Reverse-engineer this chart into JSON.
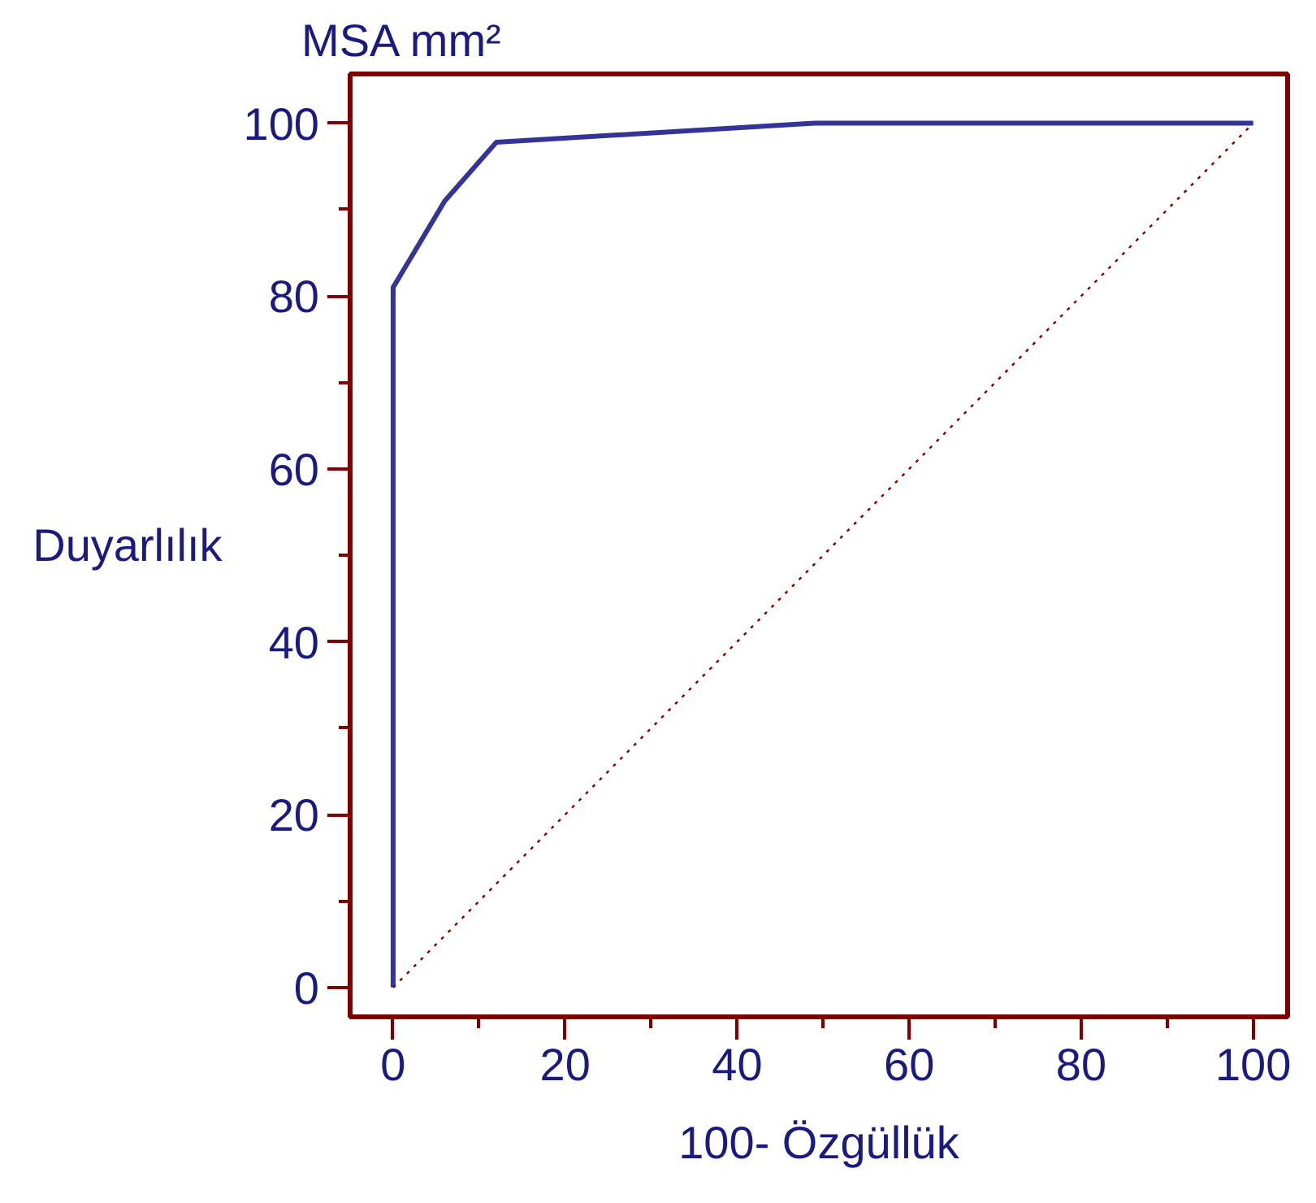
{
  "chart_data": {
    "type": "line",
    "title": "MSA  mm²",
    "xlabel": "100- Özgüllük",
    "ylabel": "Duyarlılık",
    "xlim": [
      -5,
      104
    ],
    "ylim": [
      -3.4,
      105.7
    ],
    "xticks": [
      0,
      20,
      40,
      60,
      80,
      100
    ],
    "yticks": [
      0,
      20,
      40,
      60,
      80,
      100
    ],
    "grid": false,
    "series": [
      {
        "color": "#333399",
        "x": [
          0,
          0,
          6,
          12,
          49,
          100
        ],
        "values": [
          0,
          81,
          91,
          97.8,
          100,
          100
        ],
        "line_style": "solid"
      },
      {
        "color": "#800000",
        "x": [
          0,
          100
        ],
        "values": [
          0,
          100
        ],
        "line_style": "dotted"
      }
    ]
  }
}
